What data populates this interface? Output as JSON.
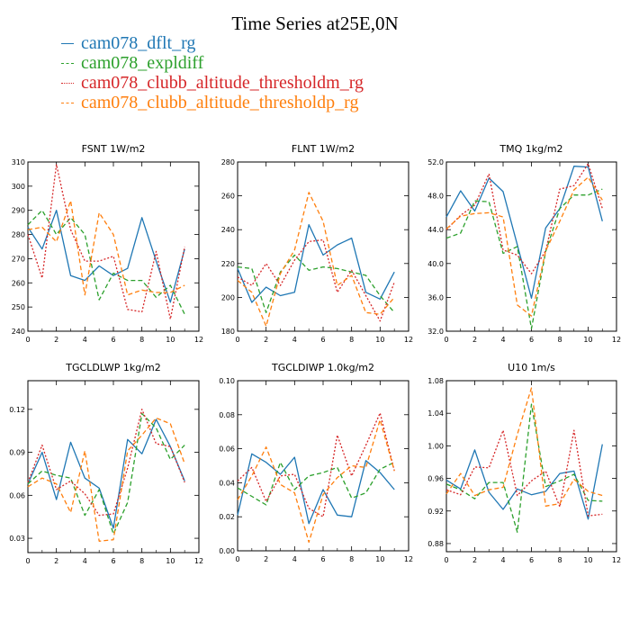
{
  "page_title": "Time Series at25E,0N",
  "legend": [
    {
      "name": "cam078_dflt_rg",
      "color": "#1f77b4"
    },
    {
      "name": "cam078_expldiff",
      "color": "#2ca02c"
    },
    {
      "name": "cam078_clubb_altitude_thresholdm_rg",
      "color": "#d62728"
    },
    {
      "name": "cam078_clubb_altitude_thresholdp_rg",
      "color": "#ff7f0e"
    }
  ],
  "chart_data": [
    {
      "type": "line",
      "title": "FSNT",
      "units": "1W/m2",
      "x": [
        0,
        1,
        2,
        3,
        4,
        5,
        6,
        7,
        8,
        9,
        10,
        11
      ],
      "xlim": [
        0,
        12
      ],
      "xticks": [
        "0",
        "2",
        "4",
        "6",
        "8",
        "10",
        "12"
      ],
      "ylim": [
        240,
        310
      ],
      "yticks": [
        "240",
        "250",
        "260",
        "270",
        "280",
        "290",
        "300",
        "310"
      ],
      "series": [
        {
          "name": "cam078_dflt_rg",
          "dash": "solid",
          "values": [
            283,
            274,
            290,
            263,
            261,
            267,
            263,
            266,
            287,
            269,
            252,
            274
          ]
        },
        {
          "name": "cam078_expldiff",
          "dash": "dash",
          "values": [
            284,
            290,
            280,
            287,
            280,
            253,
            264,
            261,
            261,
            254,
            259,
            247
          ]
        },
        {
          "name": "cam078_clubb_altitude_thresholdm_rg",
          "dash": "dot",
          "values": [
            280,
            262,
            309,
            282,
            269,
            269,
            271,
            249,
            248,
            273,
            245,
            275
          ]
        },
        {
          "name": "cam078_clubb_altitude_thresholdp_rg",
          "dash": "dash",
          "values": [
            282,
            283,
            277,
            294,
            255,
            289,
            280,
            255,
            257,
            256,
            256,
            259
          ]
        }
      ]
    },
    {
      "type": "line",
      "title": "FLNT",
      "units": "1W/m2",
      "x": [
        0,
        1,
        2,
        3,
        4,
        5,
        6,
        7,
        8,
        9,
        10,
        11
      ],
      "xlim": [
        0,
        12
      ],
      "xticks": [
        "0",
        "2",
        "4",
        "6",
        "8",
        "10",
        "12"
      ],
      "ylim": [
        180,
        280
      ],
      "yticks": [
        "180",
        "200",
        "220",
        "240",
        "260",
        "280"
      ],
      "series": [
        {
          "name": "cam078_dflt_rg",
          "dash": "solid",
          "values": [
            217,
            197,
            206,
            201,
            203,
            243,
            225,
            231,
            235,
            203,
            199,
            215
          ]
        },
        {
          "name": "cam078_expldiff",
          "dash": "dash",
          "values": [
            218,
            217,
            191,
            215,
            225,
            216,
            218,
            217,
            215,
            213,
            201,
            191
          ]
        },
        {
          "name": "cam078_clubb_altitude_thresholdm_rg",
          "dash": "dot",
          "values": [
            212,
            207,
            220,
            207,
            222,
            233,
            234,
            203,
            216,
            201,
            186,
            209
          ]
        },
        {
          "name": "cam078_clubb_altitude_thresholdp_rg",
          "dash": "dash",
          "values": [
            210,
            203,
            183,
            214,
            228,
            262,
            245,
            207,
            213,
            191,
            190,
            200
          ]
        }
      ]
    },
    {
      "type": "line",
      "title": "TMQ",
      "units": "1kg/m2",
      "x": [
        0,
        1,
        2,
        3,
        4,
        5,
        6,
        7,
        8,
        9,
        10,
        11
      ],
      "xlim": [
        0,
        12
      ],
      "xticks": [
        "0",
        "2",
        "4",
        "6",
        "8",
        "10",
        "12"
      ],
      "ylim": [
        32,
        52
      ],
      "yticks": [
        "32.0",
        "36.0",
        "40.0",
        "44.0",
        "48.0",
        "52.0"
      ],
      "series": [
        {
          "name": "cam078_dflt_rg",
          "dash": "solid",
          "values": [
            45.5,
            48.6,
            46.2,
            50.1,
            48.5,
            42.2,
            35.9,
            44.2,
            46.5,
            51.5,
            51.4,
            45.0
          ]
        },
        {
          "name": "cam078_expldiff",
          "dash": "dash",
          "values": [
            43.0,
            43.6,
            47.4,
            47.3,
            41.2,
            42.0,
            32.3,
            41.4,
            46.5,
            48.1,
            48.1,
            48.8
          ]
        },
        {
          "name": "cam078_clubb_altitude_thresholdm_rg",
          "dash": "dot",
          "values": [
            44.0,
            45.7,
            46.9,
            50.6,
            41.6,
            41.0,
            38.8,
            41.5,
            48.8,
            49.2,
            51.8,
            46.5
          ]
        },
        {
          "name": "cam078_clubb_altitude_thresholdp_rg",
          "dash": "dash",
          "values": [
            44.1,
            45.6,
            45.9,
            46.0,
            45.5,
            35.1,
            33.8,
            41.5,
            45.0,
            48.7,
            50.2,
            47.5
          ]
        }
      ]
    },
    {
      "type": "line",
      "title": "TGCLDLWP",
      "units": "1kg/m2",
      "x": [
        0,
        1,
        2,
        3,
        4,
        5,
        6,
        7,
        8,
        9,
        10,
        11
      ],
      "xlim": [
        0,
        12
      ],
      "xticks": [
        "0",
        "2",
        "4",
        "6",
        "8",
        "10",
        "12"
      ],
      "ylim": [
        0.02,
        0.14
      ],
      "yticks": [
        "0.03",
        "0.06",
        "0.09",
        "0.12"
      ],
      "series": [
        {
          "name": "cam078_dflt_rg",
          "dash": "solid",
          "values": [
            0.068,
            0.09,
            0.057,
            0.097,
            0.072,
            0.065,
            0.037,
            0.099,
            0.089,
            0.113,
            0.094,
            0.07
          ]
        },
        {
          "name": "cam078_expldiff",
          "dash": "dash",
          "values": [
            0.068,
            0.077,
            0.074,
            0.072,
            0.046,
            0.064,
            0.033,
            0.055,
            0.117,
            0.107,
            0.085,
            0.095
          ]
        },
        {
          "name": "cam078_clubb_altitude_thresholdm_rg",
          "dash": "dot",
          "values": [
            0.069,
            0.095,
            0.064,
            0.07,
            0.061,
            0.046,
            0.047,
            0.079,
            0.12,
            0.096,
            0.094,
            0.069
          ]
        },
        {
          "name": "cam078_clubb_altitude_thresholdp_rg",
          "dash": "dash",
          "values": [
            0.066,
            0.072,
            0.068,
            0.048,
            0.091,
            0.028,
            0.029,
            0.091,
            0.102,
            0.114,
            0.11,
            0.082
          ]
        }
      ]
    },
    {
      "type": "line",
      "title": "TGCLDIWP",
      "units": "1.0kg/m2",
      "x": [
        0,
        1,
        2,
        3,
        4,
        5,
        6,
        7,
        8,
        9,
        10,
        11
      ],
      "xlim": [
        0,
        12
      ],
      "xticks": [
        "0",
        "2",
        "4",
        "6",
        "8",
        "10",
        "12"
      ],
      "ylim": [
        0.0,
        0.1
      ],
      "yticks": [
        "0.00",
        "0.02",
        "0.04",
        "0.06",
        "0.08",
        "0.10"
      ],
      "series": [
        {
          "name": "cam078_dflt_rg",
          "dash": "solid",
          "values": [
            0.021,
            0.057,
            0.052,
            0.045,
            0.055,
            0.016,
            0.036,
            0.021,
            0.02,
            0.053,
            0.046,
            0.036
          ]
        },
        {
          "name": "cam078_expldiff",
          "dash": "dash",
          "values": [
            0.037,
            0.032,
            0.027,
            0.052,
            0.036,
            0.044,
            0.046,
            0.049,
            0.031,
            0.034,
            0.048,
            0.052
          ]
        },
        {
          "name": "cam078_clubb_altitude_thresholdm_rg",
          "dash": "dot",
          "values": [
            0.041,
            0.049,
            0.029,
            0.044,
            0.045,
            0.025,
            0.02,
            0.068,
            0.044,
            0.062,
            0.081,
            0.047
          ]
        },
        {
          "name": "cam078_clubb_altitude_thresholdp_rg",
          "dash": "dash",
          "values": [
            0.03,
            0.044,
            0.061,
            0.039,
            0.034,
            0.005,
            0.033,
            0.043,
            0.05,
            0.049,
            0.077,
            0.047
          ]
        }
      ]
    },
    {
      "type": "line",
      "title": "U10",
      "units": "1m/s",
      "x": [
        0,
        1,
        2,
        3,
        4,
        5,
        6,
        7,
        8,
        9,
        10,
        11
      ],
      "xlim": [
        0,
        12
      ],
      "xticks": [
        "0",
        "2",
        "4",
        "6",
        "8",
        "10",
        "12"
      ],
      "ylim": [
        0.87,
        1.08
      ],
      "yticks": [
        "0.88",
        "0.92",
        "0.96",
        "1.00",
        "1.04",
        "1.08"
      ],
      "series": [
        {
          "name": "cam078_dflt_rg",
          "dash": "solid",
          "values": [
            0.958,
            0.947,
            0.995,
            0.943,
            0.922,
            0.947,
            0.94,
            0.944,
            0.966,
            0.969,
            0.91,
            1.002
          ]
        },
        {
          "name": "cam078_expldiff",
          "dash": "dash",
          "values": [
            0.953,
            0.946,
            0.935,
            0.955,
            0.955,
            0.894,
            1.051,
            0.95,
            0.957,
            0.965,
            0.933,
            0.932
          ]
        },
        {
          "name": "cam078_clubb_altitude_thresholdm_rg",
          "dash": "dot",
          "values": [
            0.946,
            0.94,
            0.974,
            0.973,
            1.019,
            0.939,
            0.957,
            0.969,
            0.925,
            1.019,
            0.914,
            0.916
          ]
        },
        {
          "name": "cam078_clubb_altitude_thresholdp_rg",
          "dash": "dash",
          "values": [
            0.941,
            0.966,
            0.939,
            0.946,
            0.949,
            1.014,
            1.071,
            0.926,
            0.929,
            0.959,
            0.944,
            0.939
          ]
        }
      ]
    }
  ]
}
